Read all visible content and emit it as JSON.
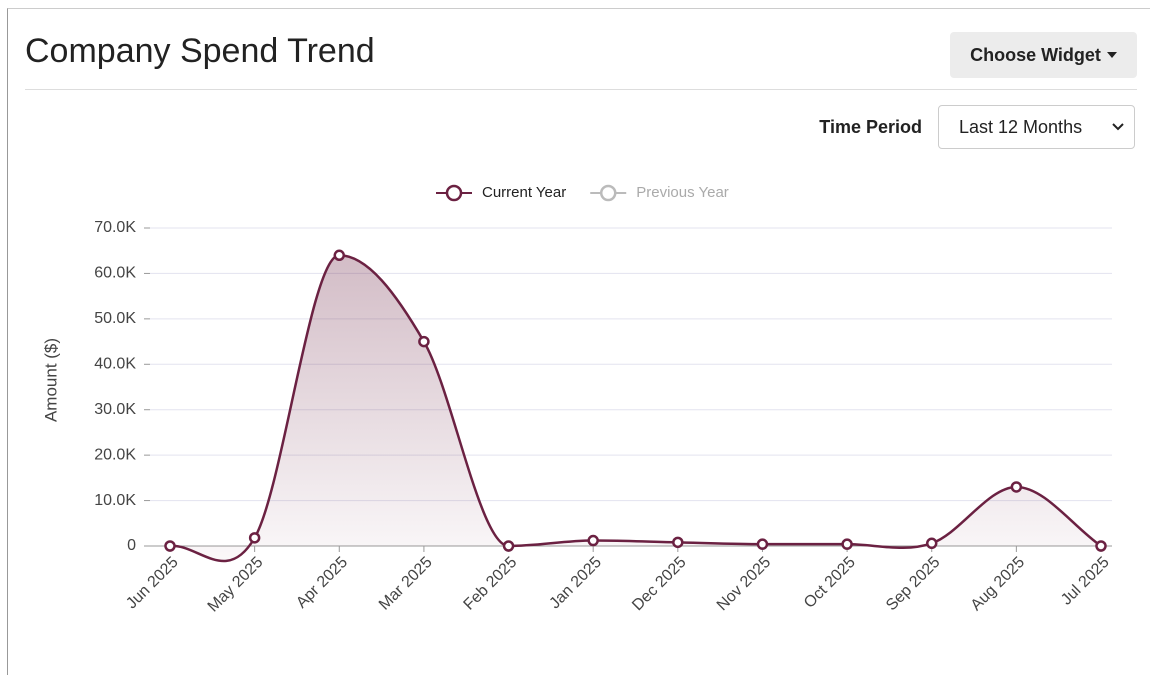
{
  "header": {
    "title": "Company Spend Trend",
    "button": "Choose Widget"
  },
  "controls": {
    "label": "Time Period",
    "select": "Last 12 Months"
  },
  "chart_data": {
    "type": "line",
    "y_label": "Amount ($)",
    "categories": [
      "Jun 2025",
      "May 2025",
      "Apr 2025",
      "Mar 2025",
      "Feb 2025",
      "Jan 2025",
      "Dec 2025",
      "Nov 2025",
      "Oct 2025",
      "Sep 2025",
      "Aug 2025",
      "Jul 2025"
    ],
    "series": [
      {
        "name": "Current Year",
        "color": "#6b2142",
        "values": [
          0,
          1800,
          64000,
          45000,
          0,
          1200,
          800,
          400,
          400,
          600,
          13000,
          0
        ]
      },
      {
        "name": "Previous Year",
        "color": "#bbbbbb",
        "hidden": true,
        "values": [
          null,
          null,
          null,
          null,
          null,
          null,
          null,
          null,
          null,
          null,
          null,
          null
        ]
      }
    ],
    "ylim": [
      0,
      70000
    ],
    "yticks": [
      0,
      {
        "value": 10000,
        "label": "10.0K"
      },
      {
        "value": 20000,
        "label": "20.0K"
      },
      {
        "value": 30000,
        "label": "30.0K"
      },
      {
        "value": 40000,
        "label": "40.0K"
      },
      {
        "value": 50000,
        "label": "50.0K"
      },
      {
        "value": 60000,
        "label": "60.0K"
      },
      {
        "value": 70000,
        "label": "70.0K"
      }
    ],
    "grid": true,
    "legend": "top"
  }
}
